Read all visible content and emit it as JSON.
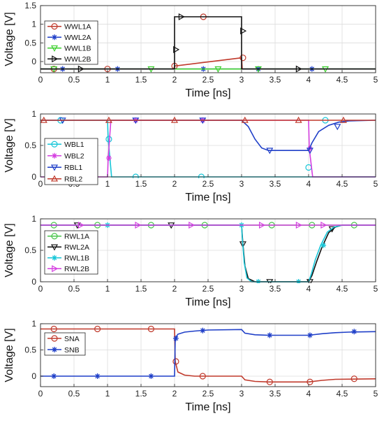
{
  "figure": {
    "background": "#ffffff",
    "grid_color": "#dcdcdc",
    "axis_color": "#262626"
  },
  "chart_data": [
    {
      "type": "line",
      "xlabel": "Time  [ns]",
      "ylabel": "Voltage  [V]",
      "xlim": [
        0,
        5
      ],
      "ylim": [
        -0.3,
        1.5
      ],
      "xticks": [
        0,
        0.5,
        1,
        1.5,
        2,
        2.5,
        3,
        3.5,
        4,
        4.5,
        5
      ],
      "xtick_labels": [
        "0",
        "0.5",
        "1",
        "1.5",
        "2",
        "2.5",
        "3",
        "3.5",
        "4",
        "4.5",
        "5"
      ],
      "yticks": [
        0,
        0.5,
        1,
        1.5
      ],
      "ytick_labels": [
        "0",
        "0.5",
        "1",
        "1.5"
      ],
      "grid": true,
      "legend_position": "top-left",
      "series": [
        {
          "name": "WWL1A",
          "color": "#c0392b",
          "marker": "circle",
          "x": [
            0,
            1.99,
            2.0,
            3.0,
            3.01,
            5
          ],
          "y": [
            -0.2,
            -0.2,
            -0.12,
            0.1,
            -0.2,
            -0.2
          ],
          "marker_x": [
            0.2,
            1.0,
            2.0,
            2.43,
            3.02
          ],
          "marker_y": [
            -0.2,
            -0.2,
            -0.12,
            1.2,
            0.1
          ]
        },
        {
          "name": "WWL2A",
          "color": "#1f3fc8",
          "marker": "star",
          "x": [
            0,
            5
          ],
          "y": [
            -0.2,
            -0.2
          ],
          "marker_x": [
            0.33,
            1.15,
            2.43,
            3.25,
            4.05
          ],
          "marker_y": [
            -0.2,
            -0.2,
            -0.2,
            -0.2,
            -0.2
          ]
        },
        {
          "name": "WWL1B",
          "color": "#3ccf2e",
          "marker": "triangle-down",
          "x": [
            0,
            5
          ],
          "y": [
            -0.2,
            -0.2
          ],
          "marker_x": [
            0.2,
            1.65,
            2.65,
            3.25,
            4.25
          ],
          "marker_y": [
            -0.2,
            -0.2,
            -0.2,
            -0.2,
            -0.2
          ]
        },
        {
          "name": "WWL2B",
          "color": "#111111",
          "marker": "triangle-right",
          "x": [
            0,
            2.0,
            2.0,
            3.0,
            3.0,
            5
          ],
          "y": [
            -0.2,
            -0.2,
            1.2,
            1.2,
            -0.2,
            -0.2
          ],
          "marker_x": [
            0.6,
            2.02,
            2.1,
            3.02,
            3.85
          ],
          "marker_y": [
            -0.2,
            0.32,
            1.2,
            0.82,
            -0.2
          ]
        }
      ]
    },
    {
      "type": "line",
      "xlabel": "Time  [ns]",
      "ylabel": "Voltage  [V]",
      "xlim": [
        0,
        5
      ],
      "ylim": [
        0,
        1
      ],
      "xticks": [
        0,
        0.5,
        1,
        1.5,
        2,
        2.5,
        3,
        3.5,
        4,
        4.5,
        5
      ],
      "xtick_labels": [
        "0",
        "0.5",
        "1",
        "1.5",
        "2",
        "2.5",
        "3",
        "3.5",
        "4",
        "4.5",
        "5"
      ],
      "yticks": [
        0,
        0.5,
        1
      ],
      "ytick_labels": [
        "0",
        "0.5",
        "1"
      ],
      "grid": true,
      "legend_position": "middle-left",
      "series": [
        {
          "name": "WBL1",
          "color": "#17c6d8",
          "marker": "circle",
          "x": [
            0,
            1.0,
            1.01,
            1.06,
            5
          ],
          "y": [
            0.9,
            0.9,
            0.6,
            0.0,
            0.0
          ],
          "marker_x": [
            0.3,
            1.02,
            1.42,
            2.4,
            4.0,
            4.25
          ],
          "marker_y": [
            0.9,
            0.6,
            0.0,
            0.0,
            0.15,
            0.9
          ]
        },
        {
          "name": "WBL2",
          "color": "#d43ee0",
          "marker": "star",
          "x": [
            0,
            1.0,
            1.01,
            1.05,
            4.0,
            4.01,
            4.06,
            5
          ],
          "y": [
            0.0,
            0.0,
            0.3,
            0.9,
            0.9,
            0.45,
            0.0,
            0.0
          ],
          "marker_x": [
            0.18,
            0.6,
            1.02,
            1.42,
            2.42,
            4.02
          ],
          "marker_y": [
            0.0,
            0.0,
            0.3,
            0.9,
            0.9,
            0.45
          ]
        },
        {
          "name": "RBL1",
          "color": "#1f3fc8",
          "marker": "triangle-down",
          "x": [
            0,
            3.0,
            3.1,
            3.2,
            3.3,
            3.4,
            4.0,
            4.05,
            4.15,
            4.3,
            4.45,
            4.6,
            5
          ],
          "y": [
            0.9,
            0.9,
            0.8,
            0.6,
            0.46,
            0.42,
            0.42,
            0.54,
            0.72,
            0.82,
            0.87,
            0.89,
            0.9
          ],
          "marker_x": [
            0.33,
            1.42,
            2.42,
            3.42,
            4.02,
            4.43
          ],
          "marker_y": [
            0.9,
            0.9,
            0.9,
            0.42,
            0.42,
            0.8
          ]
        },
        {
          "name": "RBL2",
          "color": "#c0392b",
          "marker": "triangle-up",
          "x": [
            0,
            5
          ],
          "y": [
            0.9,
            0.9
          ],
          "marker_x": [
            0.05,
            1.02,
            2.0,
            3.05,
            3.85,
            4.52
          ],
          "marker_y": [
            0.9,
            0.9,
            0.9,
            0.9,
            0.9,
            0.9
          ]
        }
      ]
    },
    {
      "type": "line",
      "xlabel": "Time  [ns]",
      "ylabel": "Voltage  [V]",
      "xlim": [
        0,
        5
      ],
      "ylim": [
        0,
        1
      ],
      "xticks": [
        0,
        0.5,
        1,
        1.5,
        2,
        2.5,
        3,
        3.5,
        4,
        4.5,
        5
      ],
      "xtick_labels": [
        "0",
        "0.5",
        "1",
        "1.5",
        "2",
        "2.5",
        "3",
        "3.5",
        "4",
        "4.5",
        "5"
      ],
      "yticks": [
        0,
        0.5,
        1
      ],
      "ytick_labels": [
        "0",
        "0.5",
        "1"
      ],
      "grid": true,
      "legend_position": "bottom-left",
      "series": [
        {
          "name": "RWL1A",
          "color": "#47c44a",
          "marker": "circle",
          "x": [
            0,
            5
          ],
          "y": [
            0.9,
            0.9
          ],
          "marker_x": [
            0.2,
            0.85,
            1.65,
            2.45,
            3.45,
            4.05,
            4.68
          ],
          "marker_y": [
            0.9,
            0.9,
            0.9,
            0.9,
            0.9,
            0.9,
            0.9
          ]
        },
        {
          "name": "RWL2A",
          "color": "#111111",
          "marker": "triangle-down",
          "x": [
            0,
            3.0,
            3.02,
            3.05,
            3.1,
            3.2,
            4.0,
            4.05,
            4.12,
            4.2,
            4.3,
            4.4,
            4.5,
            5
          ],
          "y": [
            0.9,
            0.9,
            0.6,
            0.25,
            0.05,
            0.0,
            0.0,
            0.1,
            0.32,
            0.55,
            0.78,
            0.87,
            0.9,
            0.9
          ],
          "marker_x": [
            0.55,
            1.95,
            3.02,
            3.42,
            4.02,
            4.35
          ],
          "marker_y": [
            0.9,
            0.9,
            0.6,
            0.0,
            0.0,
            0.84
          ]
        },
        {
          "name": "RWL1B",
          "color": "#17c6d8",
          "marker": "star",
          "x": [
            0,
            3.0,
            3.01,
            3.04,
            3.08,
            3.15,
            4.0,
            4.04,
            4.1,
            4.18,
            4.28,
            4.38,
            4.5,
            5
          ],
          "y": [
            0.9,
            0.9,
            0.7,
            0.3,
            0.06,
            0.0,
            0.0,
            0.12,
            0.35,
            0.58,
            0.79,
            0.87,
            0.9,
            0.9
          ],
          "marker_x": [
            1.0,
            3.0,
            3.25,
            3.85,
            4.22
          ],
          "marker_y": [
            0.9,
            0.9,
            0.0,
            0.0,
            0.58
          ]
        },
        {
          "name": "RWL2B",
          "color": "#d43ee0",
          "marker": "triangle-right",
          "x": [
            0,
            5
          ],
          "y": [
            0.9,
            0.9
          ],
          "marker_x": [
            0.6,
            1.45,
            2.25,
            3.3,
            3.85,
            4.22
          ],
          "marker_y": [
            0.9,
            0.9,
            0.9,
            0.9,
            0.9,
            0.9
          ]
        }
      ]
    },
    {
      "type": "line",
      "xlabel": "Time  [ns]",
      "ylabel": "Voltage  [V]",
      "xlim": [
        0,
        5
      ],
      "ylim": [
        -0.2,
        1.0
      ],
      "xticks": [
        0,
        0.5,
        1,
        1.5,
        2,
        2.5,
        3,
        3.5,
        4,
        4.5,
        5
      ],
      "xtick_labels": [
        "0",
        "0.5",
        "1",
        "1.5",
        "2",
        "2.5",
        "3",
        "3.5",
        "4",
        "4.5",
        "5"
      ],
      "yticks": [
        0,
        0.5,
        1
      ],
      "ytick_labels": [
        "0",
        "0.5",
        "1"
      ],
      "grid": true,
      "legend_position": "top-left",
      "series": [
        {
          "name": "SNA",
          "color": "#c0392b",
          "marker": "circle",
          "x": [
            0,
            2.0,
            2.01,
            2.05,
            2.15,
            2.3,
            3.0,
            3.05,
            3.2,
            3.4,
            4.0,
            4.2,
            4.4,
            5
          ],
          "y": [
            0.9,
            0.9,
            0.28,
            0.08,
            0.02,
            0.0,
            0.0,
            -0.07,
            -0.1,
            -0.11,
            -0.11,
            -0.08,
            -0.06,
            -0.05
          ],
          "marker_x": [
            0.2,
            0.85,
            1.65,
            2.02,
            2.42,
            3.42,
            4.02,
            4.68
          ],
          "marker_y": [
            0.9,
            0.9,
            0.9,
            0.28,
            0.0,
            -0.11,
            -0.11,
            -0.05
          ]
        },
        {
          "name": "SNB",
          "color": "#1f3fc8",
          "marker": "star",
          "x": [
            0,
            2.0,
            2.01,
            2.05,
            2.15,
            2.3,
            2.5,
            3.0,
            3.05,
            3.2,
            3.4,
            4.0,
            4.2,
            4.4,
            4.6,
            5
          ],
          "y": [
            0.0,
            0.0,
            0.72,
            0.8,
            0.84,
            0.86,
            0.88,
            0.89,
            0.82,
            0.79,
            0.78,
            0.78,
            0.81,
            0.83,
            0.84,
            0.85
          ],
          "marker_x": [
            0.2,
            0.85,
            1.65,
            2.02,
            2.42,
            3.42,
            4.02,
            4.68
          ],
          "marker_y": [
            0.0,
            0.0,
            0.0,
            0.72,
            0.87,
            0.78,
            0.78,
            0.85
          ]
        }
      ]
    }
  ]
}
